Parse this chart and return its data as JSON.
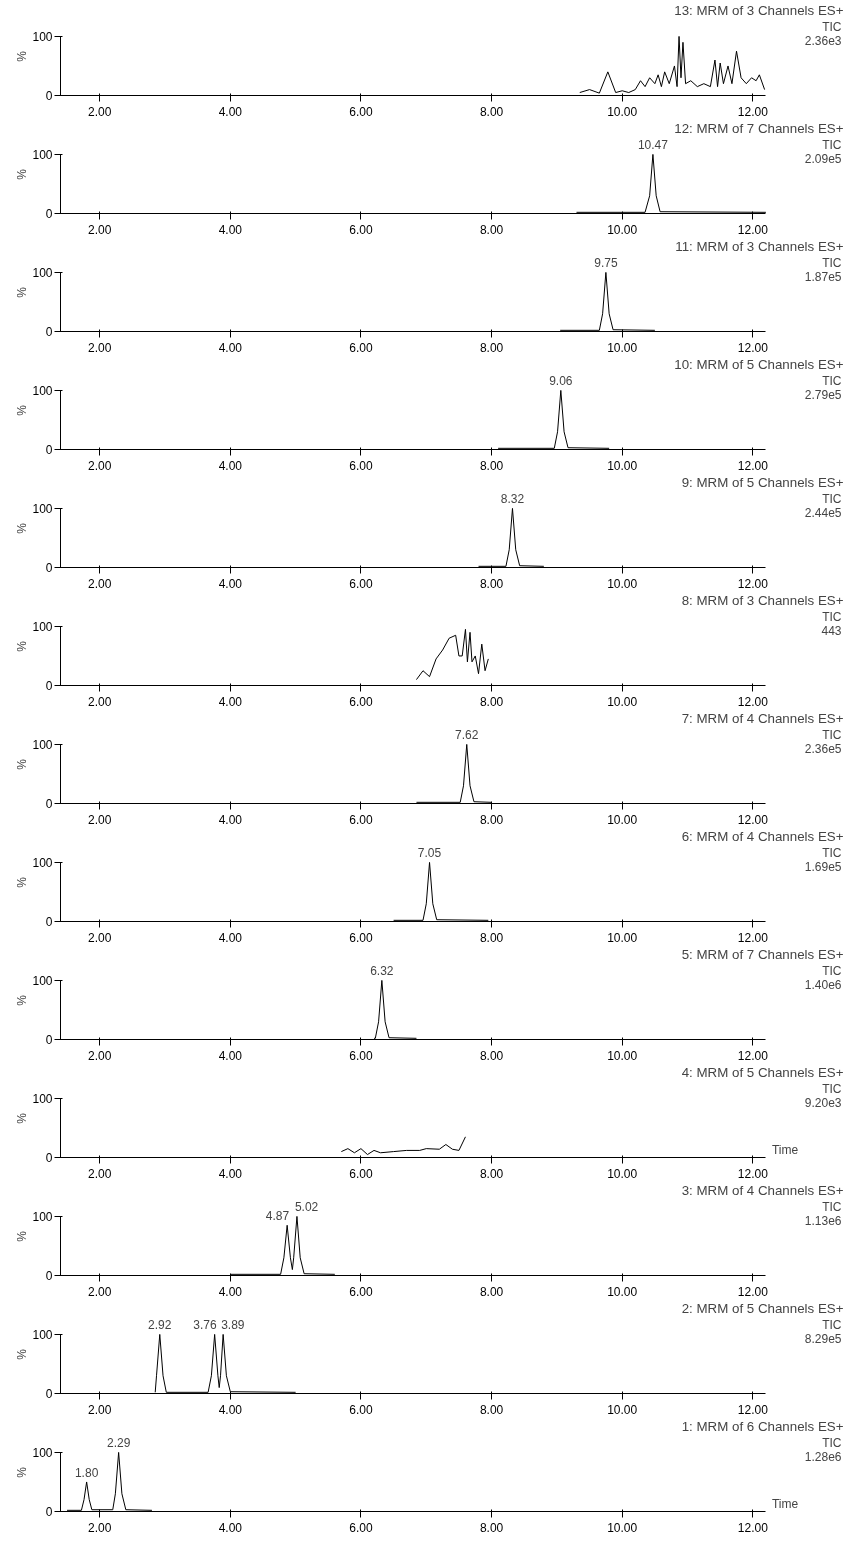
{
  "chart_data": [
    {
      "type": "line",
      "title": "13: MRM of 3 Channels ES+",
      "annotations": [
        "TIC",
        "2.36e3"
      ],
      "color": "#000000",
      "xlim": [
        1.4,
        12.2
      ],
      "ylim": [
        0,
        100
      ],
      "xticks": [
        {
          "value": 2,
          "label": "2.00"
        },
        {
          "value": 4,
          "label": "4.00"
        },
        {
          "value": 6,
          "label": "6.00"
        },
        {
          "value": 8,
          "label": "8.00"
        },
        {
          "value": 10,
          "label": "10.00"
        },
        {
          "value": 12,
          "label": "12.00"
        }
      ],
      "yticks": [
        0,
        100
      ],
      "ylabel": "%",
      "grid": false,
      "x": [
        9.35,
        9.5,
        9.65,
        9.78,
        9.9,
        10.0,
        10.1,
        10.2,
        10.28,
        10.35,
        10.42,
        10.5,
        10.55,
        10.6,
        10.65,
        10.72,
        10.8,
        10.84,
        10.87,
        10.9,
        10.93,
        10.97,
        11.05,
        11.15,
        11.25,
        11.35,
        11.42,
        11.46,
        11.5,
        11.55,
        11.62,
        11.68,
        11.75,
        11.82,
        11.9,
        11.98,
        12.05,
        12.1,
        12.18
      ],
      "values": [
        5,
        10,
        4,
        40,
        5,
        8,
        5,
        10,
        25,
        15,
        30,
        20,
        35,
        15,
        40,
        20,
        50,
        15,
        100,
        30,
        90,
        20,
        25,
        15,
        20,
        15,
        60,
        15,
        55,
        20,
        50,
        20,
        75,
        30,
        20,
        30,
        25,
        35,
        10
      ]
    },
    {
      "type": "line",
      "title": "12: MRM of 7 Channels ES+",
      "annotations": [
        "TIC",
        "2.09e5",
        {
          "text": "10.47",
          "x": 10.47,
          "y": 100
        }
      ],
      "color": "#000000",
      "xlim": [
        1.4,
        12.2
      ],
      "ylim": [
        0,
        100
      ],
      "xticks": [
        {
          "value": 2,
          "label": "2.00"
        },
        {
          "value": 4,
          "label": "4.00"
        },
        {
          "value": 6,
          "label": "6.00"
        },
        {
          "value": 8,
          "label": "8.00"
        },
        {
          "value": 10,
          "label": "10.00"
        },
        {
          "value": 12,
          "label": "12.00"
        }
      ],
      "yticks": [
        0,
        100
      ],
      "ylabel": "%",
      "grid": false,
      "x": [
        9.3,
        10.35,
        10.42,
        10.47,
        10.52,
        10.58,
        12.2
      ],
      "values": [
        2,
        2,
        30,
        100,
        30,
        3,
        2
      ]
    },
    {
      "type": "line",
      "title": "11: MRM of 3 Channels ES+",
      "annotations": [
        "TIC",
        "1.87e5",
        {
          "text": "9.75",
          "x": 9.75,
          "y": 100
        }
      ],
      "color": "#000000",
      "xlim": [
        1.4,
        12.2
      ],
      "ylim": [
        0,
        100
      ],
      "xticks": [
        {
          "value": 2,
          "label": "2.00"
        },
        {
          "value": 4,
          "label": "4.00"
        },
        {
          "value": 6,
          "label": "6.00"
        },
        {
          "value": 8,
          "label": "8.00"
        },
        {
          "value": 10,
          "label": "10.00"
        },
        {
          "value": 12,
          "label": "12.00"
        }
      ],
      "yticks": [
        0,
        100
      ],
      "ylabel": "%",
      "grid": false,
      "x": [
        9.05,
        9.65,
        9.7,
        9.75,
        9.8,
        9.86,
        10.5
      ],
      "values": [
        2,
        2,
        30,
        100,
        30,
        3,
        2
      ]
    },
    {
      "type": "line",
      "title": "10: MRM of 5 Channels ES+",
      "annotations": [
        "TIC",
        "2.79e5",
        {
          "text": "9.06",
          "x": 9.06,
          "y": 100
        }
      ],
      "color": "#000000",
      "xlim": [
        1.4,
        12.2
      ],
      "ylim": [
        0,
        100
      ],
      "xticks": [
        {
          "value": 2,
          "label": "2.00"
        },
        {
          "value": 4,
          "label": "4.00"
        },
        {
          "value": 6,
          "label": "6.00"
        },
        {
          "value": 8,
          "label": "8.00"
        },
        {
          "value": 10,
          "label": "10.00"
        },
        {
          "value": 12,
          "label": "12.00"
        }
      ],
      "yticks": [
        0,
        100
      ],
      "ylabel": "%",
      "grid": false,
      "x": [
        8.1,
        8.96,
        9.01,
        9.06,
        9.11,
        9.17,
        9.8
      ],
      "values": [
        2,
        2,
        30,
        100,
        30,
        3,
        2
      ]
    },
    {
      "type": "line",
      "title": "9: MRM of 5 Channels ES+",
      "annotations": [
        "TIC",
        "2.44e5",
        {
          "text": "8.32",
          "x": 8.32,
          "y": 100
        }
      ],
      "color": "#000000",
      "xlim": [
        1.4,
        12.2
      ],
      "ylim": [
        0,
        100
      ],
      "xticks": [
        {
          "value": 2,
          "label": "2.00"
        },
        {
          "value": 4,
          "label": "4.00"
        },
        {
          "value": 6,
          "label": "6.00"
        },
        {
          "value": 8,
          "label": "8.00"
        },
        {
          "value": 10,
          "label": "10.00"
        },
        {
          "value": 12,
          "label": "12.00"
        }
      ],
      "yticks": [
        0,
        100
      ],
      "ylabel": "%",
      "grid": false,
      "x": [
        7.8,
        8.22,
        8.27,
        8.32,
        8.37,
        8.43,
        8.8
      ],
      "values": [
        2,
        2,
        30,
        100,
        30,
        3,
        2
      ]
    },
    {
      "type": "line",
      "title": "8: MRM of 3 Channels ES+",
      "annotations": [
        "TIC",
        "443"
      ],
      "color": "#000000",
      "xlim": [
        1.4,
        12.2
      ],
      "ylim": [
        0,
        100
      ],
      "xticks": [
        {
          "value": 2,
          "label": "2.00"
        },
        {
          "value": 4,
          "label": "4.00"
        },
        {
          "value": 6,
          "label": "6.00"
        },
        {
          "value": 8,
          "label": "8.00"
        },
        {
          "value": 10,
          "label": "10.00"
        },
        {
          "value": 12,
          "label": "12.00"
        }
      ],
      "yticks": [
        0,
        100
      ],
      "ylabel": "%",
      "grid": false,
      "x": [
        6.85,
        6.95,
        7.05,
        7.15,
        7.25,
        7.35,
        7.45,
        7.5,
        7.55,
        7.6,
        7.63,
        7.67,
        7.7,
        7.75,
        7.8,
        7.85,
        7.9,
        7.95
      ],
      "values": [
        10,
        25,
        15,
        45,
        60,
        80,
        85,
        50,
        50,
        95,
        40,
        90,
        40,
        50,
        20,
        70,
        25,
        45
      ]
    },
    {
      "type": "line",
      "title": "7: MRM of 4 Channels ES+",
      "annotations": [
        "TIC",
        "2.36e5",
        {
          "text": "7.62",
          "x": 7.62,
          "y": 100
        }
      ],
      "color": "#000000",
      "xlim": [
        1.4,
        12.2
      ],
      "ylim": [
        0,
        100
      ],
      "xticks": [
        {
          "value": 2,
          "label": "2.00"
        },
        {
          "value": 4,
          "label": "4.00"
        },
        {
          "value": 6,
          "label": "6.00"
        },
        {
          "value": 8,
          "label": "8.00"
        },
        {
          "value": 10,
          "label": "10.00"
        },
        {
          "value": 12,
          "label": "12.00"
        }
      ],
      "yticks": [
        0,
        100
      ],
      "ylabel": "%",
      "grid": false,
      "x": [
        6.85,
        7.52,
        7.57,
        7.62,
        7.67,
        7.73,
        8.0
      ],
      "values": [
        2,
        2,
        30,
        100,
        30,
        3,
        2
      ]
    },
    {
      "type": "line",
      "title": "6: MRM of 4 Channels ES+",
      "annotations": [
        "TIC",
        "1.69e5",
        {
          "text": "7.05",
          "x": 7.05,
          "y": 100
        }
      ],
      "color": "#000000",
      "xlim": [
        1.4,
        12.2
      ],
      "ylim": [
        0,
        100
      ],
      "xticks": [
        {
          "value": 2,
          "label": "2.00"
        },
        {
          "value": 4,
          "label": "4.00"
        },
        {
          "value": 6,
          "label": "6.00"
        },
        {
          "value": 8,
          "label": "8.00"
        },
        {
          "value": 10,
          "label": "10.00"
        },
        {
          "value": 12,
          "label": "12.00"
        }
      ],
      "yticks": [
        0,
        100
      ],
      "ylabel": "%",
      "grid": false,
      "x": [
        6.5,
        6.95,
        7.0,
        7.05,
        7.1,
        7.16,
        7.95
      ],
      "values": [
        2,
        2,
        30,
        100,
        30,
        3,
        2
      ]
    },
    {
      "type": "line",
      "title": "5: MRM of 7 Channels ES+",
      "annotations": [
        "TIC",
        "1.40e6",
        {
          "text": "6.32",
          "x": 6.32,
          "y": 100
        }
      ],
      "color": "#000000",
      "xlim": [
        1.4,
        12.2
      ],
      "ylim": [
        0,
        100
      ],
      "xticks": [
        {
          "value": 2,
          "label": "2.00"
        },
        {
          "value": 4,
          "label": "4.00"
        },
        {
          "value": 6,
          "label": "6.00"
        },
        {
          "value": 8,
          "label": "8.00"
        },
        {
          "value": 10,
          "label": "10.00"
        },
        {
          "value": 12,
          "label": "12.00"
        }
      ],
      "yticks": [
        0,
        100
      ],
      "ylabel": "%",
      "grid": false,
      "x": [
        6.2,
        6.22,
        6.27,
        6.32,
        6.37,
        6.43,
        6.85
      ],
      "values": [
        2,
        2,
        30,
        100,
        30,
        3,
        2
      ]
    },
    {
      "type": "line",
      "title": "4: MRM of 5 Channels ES+",
      "annotations": [
        "TIC",
        "9.20e3"
      ],
      "xlabel": "Time",
      "color": "#000000",
      "xlim": [
        1.4,
        12.2
      ],
      "ylim": [
        0,
        100
      ],
      "xticks": [
        {
          "value": 2,
          "label": "2.00"
        },
        {
          "value": 4,
          "label": "4.00"
        },
        {
          "value": 6,
          "label": "6.00"
        },
        {
          "value": 8,
          "label": "8.00"
        },
        {
          "value": 10,
          "label": "10.00"
        },
        {
          "value": 12,
          "label": "12.00"
        }
      ],
      "yticks": [
        0,
        100
      ],
      "ylabel": "%",
      "grid": false,
      "x": [
        5.7,
        5.8,
        5.9,
        6.0,
        6.1,
        6.2,
        6.3,
        6.5,
        6.7,
        6.9,
        7.0,
        7.2,
        7.3,
        7.4,
        7.5,
        7.6
      ],
      "values": [
        10,
        15,
        8,
        15,
        5,
        12,
        8,
        10,
        12,
        12,
        15,
        14,
        22,
        14,
        12,
        35
      ]
    },
    {
      "type": "line",
      "title": "3: MRM of 4 Channels ES+",
      "annotations": [
        "TIC",
        "1.13e6",
        {
          "text": "4.87",
          "x": 4.87,
          "y": 85
        },
        {
          "text": "5.02",
          "x": 5.02,
          "y": 100
        }
      ],
      "color": "#000000",
      "xlim": [
        1.4,
        12.2
      ],
      "ylim": [
        0,
        100
      ],
      "xticks": [
        {
          "value": 2,
          "label": "2.00"
        },
        {
          "value": 4,
          "label": "4.00"
        },
        {
          "value": 6,
          "label": "6.00"
        },
        {
          "value": 8,
          "label": "8.00"
        },
        {
          "value": 10,
          "label": "10.00"
        },
        {
          "value": 12,
          "label": "12.00"
        }
      ],
      "yticks": [
        0,
        100
      ],
      "ylabel": "%",
      "grid": false,
      "x": [
        4.0,
        4.77,
        4.82,
        4.87,
        4.92,
        4.95,
        4.97,
        5.02,
        5.07,
        5.13,
        5.6
      ],
      "values": [
        2,
        2,
        30,
        85,
        30,
        10,
        30,
        100,
        30,
        3,
        2
      ]
    },
    {
      "type": "line",
      "title": "2: MRM of 5 Channels ES+",
      "annotations": [
        "TIC",
        "8.29e5",
        {
          "text": "2.92",
          "x": 2.92,
          "y": 100
        },
        {
          "text": "3.76",
          "x": 3.76,
          "y": 100
        },
        {
          "text": "3.89",
          "x": 3.89,
          "y": 100
        }
      ],
      "color": "#000000",
      "xlim": [
        1.4,
        12.2
      ],
      "ylim": [
        0,
        100
      ],
      "xticks": [
        {
          "value": 2,
          "label": "2.00"
        },
        {
          "value": 4,
          "label": "4.00"
        },
        {
          "value": 6,
          "label": "6.00"
        },
        {
          "value": 8,
          "label": "8.00"
        },
        {
          "value": 10,
          "label": "10.00"
        },
        {
          "value": 12,
          "label": "12.00"
        }
      ],
      "yticks": [
        0,
        100
      ],
      "ylabel": "%",
      "grid": false,
      "x": [
        2.85,
        2.87,
        2.92,
        2.97,
        3.02,
        3.66,
        3.71,
        3.76,
        3.81,
        3.83,
        3.85,
        3.89,
        3.94,
        4.0,
        5.0
      ],
      "values": [
        2,
        30,
        100,
        30,
        2,
        2,
        30,
        100,
        30,
        10,
        30,
        100,
        30,
        3,
        2
      ]
    },
    {
      "type": "line",
      "title": "1: MRM of 6 Channels ES+",
      "annotations": [
        "TIC",
        "1.28e6",
        {
          "text": "1.80",
          "x": 1.8,
          "y": 50
        },
        {
          "text": "2.29",
          "x": 2.29,
          "y": 100
        }
      ],
      "xlabel": "Time",
      "color": "#000000",
      "xlim": [
        1.4,
        12.2
      ],
      "ylim": [
        0,
        100
      ],
      "xticks": [
        {
          "value": 2,
          "label": "2.00"
        },
        {
          "value": 4,
          "label": "4.00"
        },
        {
          "value": 6,
          "label": "6.00"
        },
        {
          "value": 8,
          "label": "8.00"
        },
        {
          "value": 10,
          "label": "10.00"
        },
        {
          "value": 12,
          "label": "12.00"
        }
      ],
      "yticks": [
        0,
        100
      ],
      "ylabel": "%",
      "grid": false,
      "x": [
        1.5,
        1.72,
        1.76,
        1.8,
        1.84,
        1.88,
        2.2,
        2.24,
        2.29,
        2.34,
        2.4,
        2.8
      ],
      "values": [
        2,
        2,
        20,
        50,
        20,
        3,
        3,
        30,
        100,
        30,
        3,
        2
      ]
    }
  ]
}
